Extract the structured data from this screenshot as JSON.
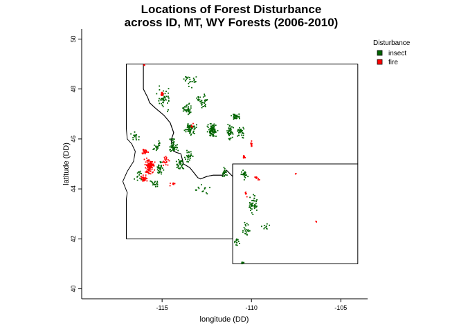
{
  "title": {
    "line1": "Locations of Forest Disturbance",
    "line2": "across ID, MT, WY Forests (2006-2010)"
  },
  "chart_data": {
    "type": "scatter",
    "title": "Locations of Forest Disturbance across ID, MT, WY Forests (2006-2010)",
    "xlabel": "longitude (DD)",
    "ylabel": "latitude (DD)",
    "xlim": [
      -119.5,
      -103.5
    ],
    "ylim": [
      39.6,
      50.4
    ],
    "x_ticks": [
      -115,
      -110,
      -105
    ],
    "y_ticks": [
      40,
      42,
      44,
      46,
      48,
      50
    ],
    "x_tick_labels": [
      "-115",
      "-110",
      "-105"
    ],
    "y_tick_labels": [
      "40",
      "42",
      "44",
      "46",
      "48",
      "50"
    ],
    "grid": false,
    "legend": {
      "title": "Disturbance",
      "placement": "top-right",
      "entries": [
        {
          "label": "insect",
          "color": "#006400"
        },
        {
          "label": "fire",
          "color": "#ff0000"
        }
      ]
    },
    "state_outlines": [
      {
        "name": "ID",
        "outline": [
          [
            -117.0,
            49.0
          ],
          [
            -116.05,
            49.0
          ],
          [
            -116.05,
            48.0
          ],
          [
            -115.8,
            47.65
          ],
          [
            -115.7,
            47.45
          ],
          [
            -115.4,
            47.25
          ],
          [
            -114.9,
            46.95
          ],
          [
            -114.55,
            46.65
          ],
          [
            -114.35,
            46.25
          ],
          [
            -114.5,
            45.95
          ],
          [
            -114.35,
            45.5
          ],
          [
            -113.95,
            45.4
          ],
          [
            -113.8,
            45.0
          ],
          [
            -113.45,
            44.85
          ],
          [
            -113.0,
            44.45
          ],
          [
            -112.85,
            44.4
          ],
          [
            -112.5,
            44.5
          ],
          [
            -112.15,
            44.55
          ],
          [
            -111.6,
            44.55
          ],
          [
            -111.4,
            44.75
          ],
          [
            -111.05,
            44.5
          ],
          [
            -111.05,
            42.0
          ],
          [
            -117.0,
            42.0
          ],
          [
            -117.0,
            43.6
          ],
          [
            -116.95,
            43.85
          ],
          [
            -117.2,
            44.3
          ],
          [
            -116.95,
            44.7
          ],
          [
            -116.6,
            45.1
          ],
          [
            -116.5,
            45.5
          ],
          [
            -116.7,
            45.8
          ],
          [
            -116.95,
            46.0
          ],
          [
            -117.0,
            46.4
          ],
          [
            -117.0,
            49.0
          ]
        ]
      },
      {
        "name": "MT",
        "outline": [
          [
            -116.05,
            49.0
          ],
          [
            -104.05,
            49.0
          ],
          [
            -104.05,
            45.0
          ],
          [
            -111.05,
            45.0
          ],
          [
            -111.05,
            44.5
          ],
          [
            -111.4,
            44.75
          ],
          [
            -111.6,
            44.55
          ],
          [
            -112.15,
            44.55
          ],
          [
            -112.5,
            44.5
          ],
          [
            -112.85,
            44.4
          ],
          [
            -113.0,
            44.45
          ],
          [
            -113.45,
            44.85
          ],
          [
            -113.8,
            45.0
          ],
          [
            -113.95,
            45.4
          ],
          [
            -114.35,
            45.5
          ],
          [
            -114.5,
            45.95
          ],
          [
            -114.35,
            46.25
          ],
          [
            -114.55,
            46.65
          ],
          [
            -114.9,
            46.95
          ],
          [
            -115.4,
            47.25
          ],
          [
            -115.7,
            47.45
          ],
          [
            -115.8,
            47.65
          ],
          [
            -116.05,
            48.0
          ],
          [
            -116.05,
            49.0
          ]
        ]
      },
      {
        "name": "WY",
        "outline": [
          [
            -111.05,
            45.0
          ],
          [
            -104.05,
            45.0
          ],
          [
            -104.05,
            41.0
          ],
          [
            -111.05,
            41.0
          ],
          [
            -111.05,
            45.0
          ]
        ]
      }
    ],
    "series": [
      {
        "name": "insect",
        "color": "#006400",
        "clusters": [
          {
            "x": -112.2,
            "y": 46.35,
            "spread_x": 0.35,
            "spread_y": 0.35,
            "count": 90
          },
          {
            "x": -111.2,
            "y": 46.3,
            "spread_x": 0.25,
            "spread_y": 0.35,
            "count": 50
          },
          {
            "x": -110.9,
            "y": 46.9,
            "spread_x": 0.3,
            "spread_y": 0.15,
            "count": 35
          },
          {
            "x": -110.6,
            "y": 46.3,
            "spread_x": 0.3,
            "spread_y": 0.3,
            "count": 35
          },
          {
            "x": -113.4,
            "y": 46.4,
            "spread_x": 0.4,
            "spread_y": 0.35,
            "count": 60
          },
          {
            "x": -113.6,
            "y": 47.2,
            "spread_x": 0.35,
            "spread_y": 0.3,
            "count": 40
          },
          {
            "x": -112.7,
            "y": 47.5,
            "spread_x": 0.45,
            "spread_y": 0.4,
            "count": 35
          },
          {
            "x": -114.9,
            "y": 47.6,
            "spread_x": 0.5,
            "spread_y": 0.6,
            "count": 45
          },
          {
            "x": -113.5,
            "y": 48.3,
            "spread_x": 0.6,
            "spread_y": 0.4,
            "count": 25
          },
          {
            "x": -114.4,
            "y": 45.7,
            "spread_x": 0.35,
            "spread_y": 0.4,
            "count": 45
          },
          {
            "x": -114.0,
            "y": 45.0,
            "spread_x": 0.35,
            "spread_y": 0.35,
            "count": 35
          },
          {
            "x": -113.5,
            "y": 45.3,
            "spread_x": 0.35,
            "spread_y": 0.35,
            "count": 25
          },
          {
            "x": -115.1,
            "y": 44.8,
            "spread_x": 0.3,
            "spread_y": 0.4,
            "count": 30
          },
          {
            "x": -115.4,
            "y": 44.2,
            "spread_x": 0.3,
            "spread_y": 0.2,
            "count": 20
          },
          {
            "x": -115.3,
            "y": 45.7,
            "spread_x": 0.25,
            "spread_y": 0.3,
            "count": 20
          },
          {
            "x": -111.5,
            "y": 44.6,
            "spread_x": 0.25,
            "spread_y": 0.3,
            "count": 20
          },
          {
            "x": -110.4,
            "y": 44.6,
            "spread_x": 0.25,
            "spread_y": 0.3,
            "count": 25
          },
          {
            "x": -109.9,
            "y": 43.4,
            "spread_x": 0.3,
            "spread_y": 0.5,
            "count": 45
          },
          {
            "x": -110.3,
            "y": 42.4,
            "spread_x": 0.25,
            "spread_y": 0.4,
            "count": 20
          },
          {
            "x": -109.2,
            "y": 42.5,
            "spread_x": 0.4,
            "spread_y": 0.2,
            "count": 10
          },
          {
            "x": -110.8,
            "y": 41.9,
            "spread_x": 0.2,
            "spread_y": 0.25,
            "count": 15
          },
          {
            "x": -110.5,
            "y": 41.05,
            "spread_x": 0.15,
            "spread_y": 0.05,
            "count": 10
          },
          {
            "x": -112.8,
            "y": 44.0,
            "spread_x": 0.8,
            "spread_y": 0.3,
            "count": 15
          },
          {
            "x": -116.3,
            "y": 44.5,
            "spread_x": 0.3,
            "spread_y": 0.4,
            "count": 15
          },
          {
            "x": -116.5,
            "y": 46.1,
            "spread_x": 0.35,
            "spread_y": 0.3,
            "count": 15
          }
        ]
      },
      {
        "name": "fire",
        "color": "#ff0000",
        "clusters": [
          {
            "x": -115.7,
            "y": 44.9,
            "spread_x": 0.35,
            "spread_y": 0.45,
            "count": 110
          },
          {
            "x": -116.0,
            "y": 44.4,
            "spread_x": 0.25,
            "spread_y": 0.2,
            "count": 30
          },
          {
            "x": -115.95,
            "y": 45.5,
            "spread_x": 0.3,
            "spread_y": 0.15,
            "count": 25
          },
          {
            "x": -115.0,
            "y": 47.8,
            "spread_x": 0.08,
            "spread_y": 0.08,
            "count": 20
          },
          {
            "x": -116.0,
            "y": 48.95,
            "spread_x": 0.05,
            "spread_y": 0.05,
            "count": 5
          },
          {
            "x": -114.8,
            "y": 45.1,
            "spread_x": 0.25,
            "spread_y": 0.3,
            "count": 20
          },
          {
            "x": -114.4,
            "y": 44.2,
            "spread_x": 0.2,
            "spread_y": 0.1,
            "count": 8
          },
          {
            "x": -110.0,
            "y": 45.8,
            "spread_x": 0.1,
            "spread_y": 0.15,
            "count": 12
          },
          {
            "x": -110.4,
            "y": 45.3,
            "spread_x": 0.15,
            "spread_y": 0.15,
            "count": 10
          },
          {
            "x": -109.7,
            "y": 44.4,
            "spread_x": 0.25,
            "spread_y": 0.1,
            "count": 10
          },
          {
            "x": -110.3,
            "y": 43.8,
            "spread_x": 0.1,
            "spread_y": 0.2,
            "count": 5
          },
          {
            "x": -113.3,
            "y": 46.5,
            "spread_x": 0.2,
            "spread_y": 0.2,
            "count": 6
          },
          {
            "x": -106.4,
            "y": 42.7,
            "spread_x": 0.05,
            "spread_y": 0.05,
            "count": 2
          },
          {
            "x": -107.5,
            "y": 44.6,
            "spread_x": 0.05,
            "spread_y": 0.05,
            "count": 2
          }
        ]
      }
    ]
  }
}
